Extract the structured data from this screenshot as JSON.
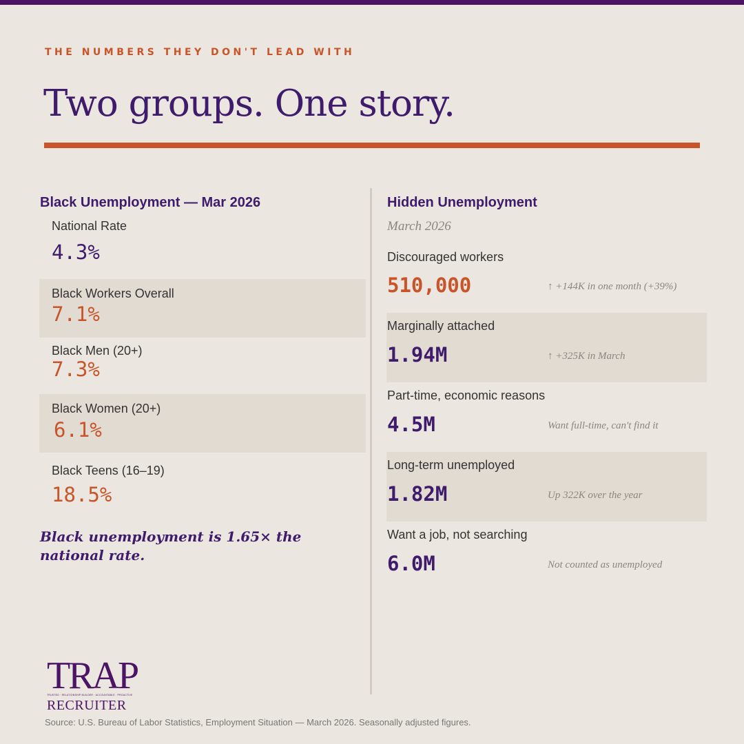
{
  "kicker": "THE NUMBERS THEY DON'T LEAD WITH",
  "title": "Two groups. One story.",
  "left": {
    "heading": "Black Unemployment — Mar 2026",
    "stats": [
      {
        "label": "National Rate",
        "value": "4.3%"
      },
      {
        "label": "Black Workers Overall",
        "value": "7.1%"
      },
      {
        "label": "Black Men (20+)",
        "value": "7.3%"
      },
      {
        "label": "Black Women (20+)",
        "value": "6.1%"
      },
      {
        "label": "Black Teens (16–19)",
        "value": "18.5%"
      }
    ],
    "insight": "Black unemployment is 1.65× the national rate."
  },
  "right": {
    "heading": "Hidden Unemployment",
    "subheading": "March 2026",
    "rows": [
      {
        "label": "Discouraged workers",
        "value": "510,000",
        "note": "↑ +144K in one month (+39%)"
      },
      {
        "label": "Marginally attached",
        "value": "1.94M",
        "note": "↑ +325K in March"
      },
      {
        "label": "Part-time, economic reasons",
        "value": "4.5M",
        "note": "Want full-time, can't find it"
      },
      {
        "label": "Long-term unemployed",
        "value": "1.82M",
        "note": "Up 322K over the year"
      },
      {
        "label": "Want a job, not searching",
        "value": "6.0M",
        "note": "Not counted as unemployed"
      }
    ]
  },
  "logo": {
    "main": "TRAP",
    "tagline": "TRUSTED · RELATIONSHIP BUILDER · ACCOUNTABLE · PROACTIVE",
    "sub": "RECRUITER"
  },
  "source": "Source: U.S. Bureau of Labor Statistics, Employment Situation — March 2026. Seasonally adjusted figures.",
  "colors": {
    "purple": "#3f1b6b",
    "orange": "#c8552a",
    "background": "#ebe6df",
    "shade": "#e2dbd2"
  }
}
